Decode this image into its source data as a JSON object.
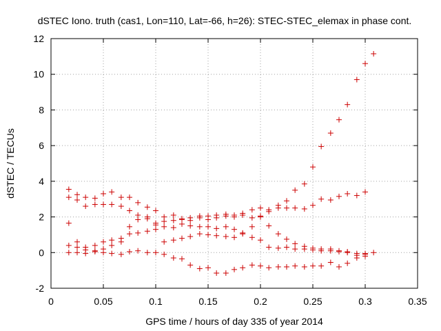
{
  "chart_data": {
    "type": "scatter",
    "title": "dSTEC Iono. truth (cas1, Lon=110, Lat=-66, h=26): STEC-STEC_elemax in phase cont.",
    "xlabel": "GPS time / hours of day 335 of year 2014",
    "ylabel": "dSTEC  / TECUs",
    "xlim": [
      0,
      0.35
    ],
    "ylim": [
      -2,
      12
    ],
    "xticks": [
      0,
      0.05,
      0.1,
      0.15,
      0.2,
      0.25,
      0.3,
      0.35
    ],
    "yticks": [
      -2,
      0,
      2,
      4,
      6,
      8,
      10,
      12
    ],
    "xtick_labels": [
      "0",
      "0.05",
      "0.1",
      "0.15",
      "0.2",
      "0.25",
      "0.3",
      "0.35"
    ],
    "ytick_labels": [
      "-2",
      "0",
      "2",
      "4",
      "6",
      "8",
      "10",
      "12"
    ],
    "grid": true,
    "marker": "+",
    "marker_color": "#cc0000",
    "series": [
      {
        "x": [
          0.017,
          0.017,
          0.025,
          0.025,
          0.033,
          0.033,
          0.042,
          0.042,
          0.05,
          0.05,
          0.058,
          0.058,
          0.067,
          0.067,
          0.075,
          0.075,
          0.083,
          0.083,
          0.092,
          0.092,
          0.1,
          0.1,
          0.108,
          0.108,
          0.117,
          0.117,
          0.125,
          0.125,
          0.133,
          0.133,
          0.142,
          0.142,
          0.15,
          0.15,
          0.158,
          0.158,
          0.167,
          0.167,
          0.175,
          0.175,
          0.183,
          0.183,
          0.192,
          0.192,
          0.2,
          0.2,
          0.208,
          0.208,
          0.217,
          0.217,
          0.225,
          0.225,
          0.233,
          0.233,
          0.242,
          0.242,
          0.25,
          0.25,
          0.258,
          0.258,
          0.267,
          0.267,
          0.275,
          0.275,
          0.283,
          0.283,
          0.292,
          0.292,
          0.3,
          0.3,
          0.308
        ],
        "y": [
          3.55,
          3.1,
          3.25,
          2.95,
          3.1,
          2.6,
          3.05,
          2.7,
          3.3,
          2.7,
          3.4,
          2.7,
          3.1,
          2.6,
          3.1,
          2.35,
          2.8,
          2.1,
          2.55,
          1.9,
          2.35,
          1.65,
          2.0,
          1.75,
          2.1,
          1.8,
          1.9,
          1.85,
          1.95,
          1.8,
          2.05,
          1.95,
          2.05,
          1.85,
          2.1,
          1.95,
          2.15,
          2.05,
          2.1,
          2.0,
          2.2,
          2.1,
          2.4,
          1.95,
          2.5,
          2.05,
          2.4,
          2.3,
          2.65,
          2.5,
          2.9,
          2.5,
          3.5,
          2.5,
          3.85,
          2.45,
          4.8,
          2.65,
          5.95,
          3.0,
          6.7,
          2.95,
          7.45,
          3.15,
          8.3,
          3.3,
          9.7,
          3.2,
          10.6,
          3.4,
          11.15
        ]
      },
      {
        "x": [
          0.017,
          0.017,
          0.025,
          0.025,
          0.033,
          0.033,
          0.042,
          0.042,
          0.05,
          0.05,
          0.058,
          0.058,
          0.067,
          0.067,
          0.075,
          0.075,
          0.083,
          0.083,
          0.092,
          0.092,
          0.1,
          0.1,
          0.108,
          0.108,
          0.117,
          0.117,
          0.125,
          0.125,
          0.133,
          0.133,
          0.142,
          0.142,
          0.15,
          0.15,
          0.158,
          0.158,
          0.167,
          0.167,
          0.175,
          0.175,
          0.183,
          0.183,
          0.192,
          0.192,
          0.2,
          0.2,
          0.208,
          0.208,
          0.217,
          0.217,
          0.225,
          0.225,
          0.233,
          0.233,
          0.242,
          0.242,
          0.25,
          0.25,
          0.258,
          0.258,
          0.267,
          0.267,
          0.275,
          0.275,
          0.283,
          0.283,
          0.292,
          0.292,
          0.3,
          0.3,
          0.308
        ],
        "y": [
          1.65,
          0.4,
          0.6,
          0.3,
          0.3,
          0.15,
          0.4,
          0.1,
          0.6,
          0.2,
          0.7,
          0.4,
          0.8,
          0.6,
          1.05,
          1.45,
          1.1,
          1.85,
          1.2,
          2.0,
          1.3,
          1.55,
          0.6,
          1.45,
          0.7,
          1.4,
          0.8,
          1.6,
          0.9,
          1.5,
          1.05,
          1.45,
          1.0,
          1.45,
          0.95,
          1.35,
          0.9,
          1.45,
          0.85,
          1.3,
          1.1,
          1.05,
          0.85,
          1.45,
          0.7,
          2.0,
          0.3,
          1.5,
          0.25,
          1.05,
          0.3,
          0.75,
          0.5,
          0.2,
          0.35,
          0.2,
          0.15,
          0.25,
          0.2,
          0.1,
          0.1,
          0.2,
          0.1,
          0.05,
          0.05,
          0.0,
          -0.05,
          -0.15,
          -0.1,
          -0.05,
          0.0
        ]
      },
      {
        "x": [
          0.017,
          0.025,
          0.033,
          0.042,
          0.05,
          0.058,
          0.067,
          0.075,
          0.083,
          0.092,
          0.1,
          0.108,
          0.117,
          0.125,
          0.133,
          0.142,
          0.15,
          0.158,
          0.167,
          0.175,
          0.183,
          0.192,
          0.2,
          0.208,
          0.217,
          0.225,
          0.233,
          0.242,
          0.25,
          0.258,
          0.267,
          0.275,
          0.283,
          0.292,
          0.3
        ],
        "y": [
          0.0,
          0.0,
          -0.05,
          0.05,
          0.0,
          -0.05,
          -0.1,
          0.05,
          0.1,
          0.0,
          0.0,
          -0.1,
          -0.3,
          -0.35,
          -0.7,
          -0.9,
          -0.85,
          -1.15,
          -1.15,
          -0.95,
          -0.85,
          -0.7,
          -0.75,
          -0.85,
          -0.8,
          -0.8,
          -0.75,
          -0.8,
          -0.75,
          -0.75,
          -0.55,
          -0.8,
          -0.6,
          -0.3,
          -0.2
        ]
      }
    ]
  }
}
